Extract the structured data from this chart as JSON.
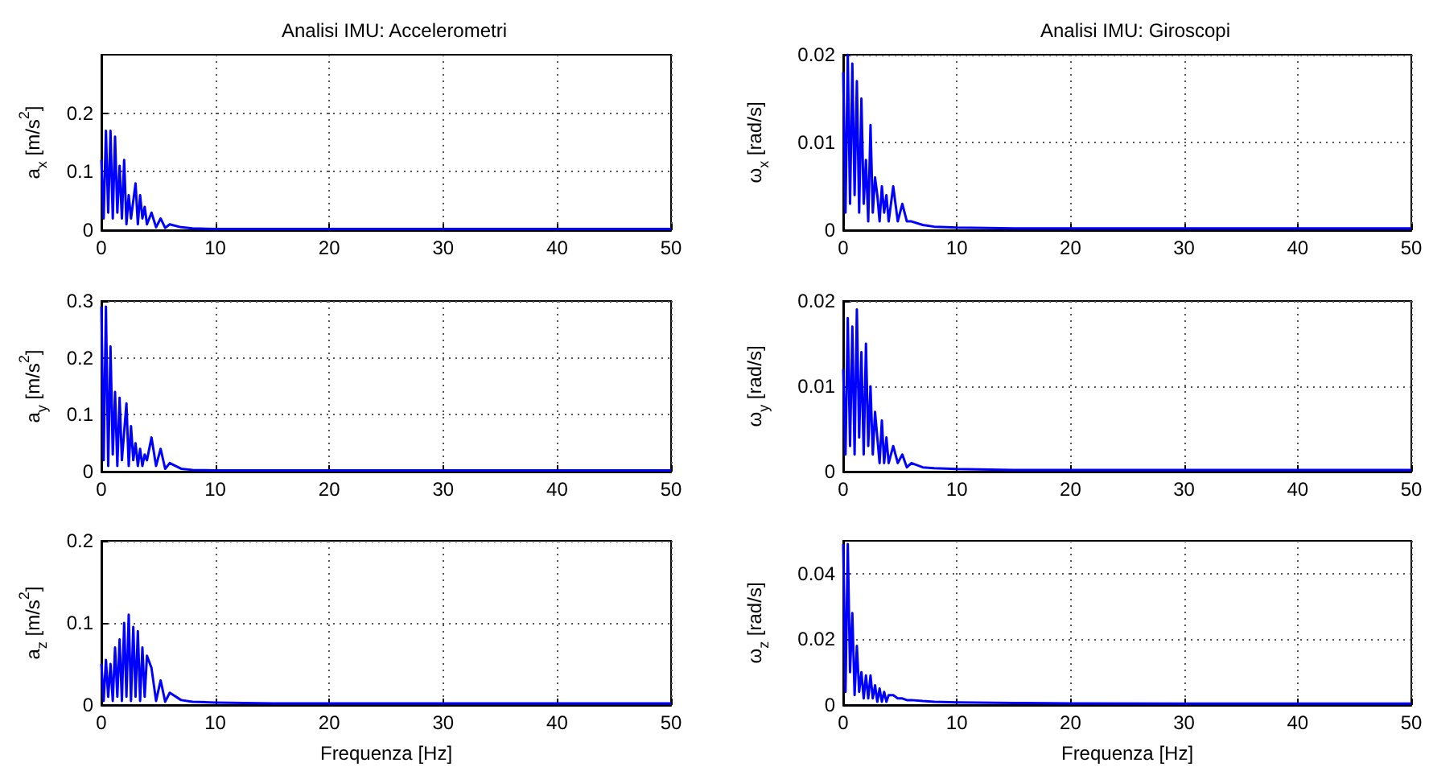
{
  "chart_data": [
    {
      "type": "line",
      "title": "Analisi IMU: Accelerometri",
      "ylabel": "a$_{x}$ [m/s$^{2}$]",
      "xlim": [
        0,
        50
      ],
      "xticks": [
        0,
        10,
        20,
        30,
        40,
        50
      ],
      "ylim": [
        0,
        0.3
      ],
      "yticks": [
        0,
        0.1,
        0.2
      ],
      "grid": true,
      "series": [
        {
          "color": "#0000ff",
          "x": [
            0,
            0.2,
            0.4,
            0.6,
            0.8,
            1.0,
            1.2,
            1.4,
            1.6,
            1.8,
            2.0,
            2.2,
            2.4,
            2.6,
            2.8,
            3.0,
            3.2,
            3.4,
            3.6,
            3.8,
            4.0,
            4.4,
            4.8,
            5.2,
            5.6,
            6,
            7,
            8,
            10,
            15,
            20,
            30,
            40,
            50
          ],
          "values": [
            0.12,
            0.02,
            0.17,
            0.03,
            0.17,
            0.02,
            0.16,
            0.03,
            0.11,
            0.02,
            0.12,
            0.01,
            0.06,
            0.02,
            0.05,
            0.08,
            0.01,
            0.06,
            0.02,
            0.04,
            0.01,
            0.03,
            0.005,
            0.02,
            0.004,
            0.01,
            0.005,
            0.003,
            0.002,
            0.002,
            0.002,
            0.002,
            0.002,
            0.002
          ]
        }
      ]
    },
    {
      "type": "line",
      "title": "Analisi IMU: Giroscopi",
      "ylabel": "ω$_{x}$ [rad/s]",
      "xlim": [
        0,
        50
      ],
      "xticks": [
        0,
        10,
        20,
        30,
        40,
        50
      ],
      "ylim": [
        0,
        0.02
      ],
      "yticks": [
        0,
        0.01,
        0.02
      ],
      "grid": true,
      "series": [
        {
          "color": "#0000ff",
          "x": [
            0,
            0.2,
            0.4,
            0.6,
            0.8,
            1.0,
            1.2,
            1.4,
            1.6,
            1.8,
            2.0,
            2.2,
            2.4,
            2.6,
            2.8,
            3.0,
            3.2,
            3.4,
            3.6,
            3.8,
            4.0,
            4.4,
            4.8,
            5.2,
            5.6,
            6,
            7,
            8,
            10,
            15,
            20,
            30,
            40,
            50
          ],
          "values": [
            0.018,
            0.002,
            0.02,
            0.003,
            0.019,
            0.004,
            0.017,
            0.002,
            0.015,
            0.003,
            0.008,
            0.001,
            0.012,
            0.002,
            0.006,
            0.004,
            0.001,
            0.005,
            0.002,
            0.004,
            0.001,
            0.005,
            0.001,
            0.003,
            0.001,
            0.001,
            0.0006,
            0.0004,
            0.0003,
            0.0002,
            0.0002,
            0.0002,
            0.0002,
            0.0002
          ]
        }
      ]
    },
    {
      "type": "line",
      "ylabel": "a$_{y}$ [m/s$^{2}$]",
      "xlim": [
        0,
        50
      ],
      "xticks": [
        0,
        10,
        20,
        30,
        40,
        50
      ],
      "ylim": [
        0,
        0.3
      ],
      "yticks": [
        0,
        0.1,
        0.2,
        0.3
      ],
      "grid": true,
      "series": [
        {
          "color": "#0000ff",
          "x": [
            0,
            0.2,
            0.4,
            0.6,
            0.8,
            1.0,
            1.2,
            1.4,
            1.6,
            1.8,
            2.0,
            2.2,
            2.4,
            2.6,
            2.8,
            3.0,
            3.2,
            3.4,
            3.6,
            3.8,
            4.0,
            4.4,
            4.8,
            5.2,
            5.6,
            6,
            7,
            8,
            10,
            15,
            20,
            30,
            40,
            50
          ],
          "values": [
            0.29,
            0.02,
            0.29,
            0.01,
            0.22,
            0.03,
            0.14,
            0.01,
            0.13,
            0.02,
            0.07,
            0.12,
            0.01,
            0.08,
            0.02,
            0.05,
            0.01,
            0.04,
            0.01,
            0.03,
            0.02,
            0.06,
            0.01,
            0.04,
            0.005,
            0.015,
            0.005,
            0.003,
            0.002,
            0.002,
            0.002,
            0.002,
            0.002,
            0.002
          ]
        }
      ]
    },
    {
      "type": "line",
      "ylabel": "ω$_{y}$ [rad/s]",
      "xlim": [
        0,
        50
      ],
      "xticks": [
        0,
        10,
        20,
        30,
        40,
        50
      ],
      "ylim": [
        0,
        0.02
      ],
      "yticks": [
        0,
        0.01,
        0.02
      ],
      "grid": true,
      "series": [
        {
          "color": "#0000ff",
          "x": [
            0,
            0.2,
            0.4,
            0.6,
            0.8,
            1.0,
            1.2,
            1.4,
            1.6,
            1.8,
            2.0,
            2.2,
            2.4,
            2.6,
            2.8,
            3.0,
            3.2,
            3.4,
            3.6,
            3.8,
            4.0,
            4.4,
            4.8,
            5.2,
            5.6,
            6,
            7,
            8,
            10,
            15,
            20,
            30,
            40,
            50
          ],
          "values": [
            0.012,
            0.002,
            0.018,
            0.003,
            0.017,
            0.002,
            0.019,
            0.004,
            0.014,
            0.002,
            0.015,
            0.003,
            0.01,
            0.002,
            0.007,
            0.004,
            0.001,
            0.006,
            0.001,
            0.004,
            0.001,
            0.003,
            0.001,
            0.002,
            0.0005,
            0.001,
            0.0005,
            0.0004,
            0.0003,
            0.0002,
            0.0002,
            0.0002,
            0.0002,
            0.0002
          ]
        }
      ]
    },
    {
      "type": "line",
      "ylabel": "a$_{z}$ [m/s$^{2}$]",
      "xlabel": "Frequenza [Hz]",
      "xlim": [
        0,
        50
      ],
      "xticks": [
        0,
        10,
        20,
        30,
        40,
        50
      ],
      "ylim": [
        0,
        0.2
      ],
      "yticks": [
        0,
        0.1,
        0.2
      ],
      "grid": true,
      "series": [
        {
          "color": "#0000ff",
          "x": [
            0,
            0.2,
            0.4,
            0.6,
            0.8,
            1.0,
            1.2,
            1.4,
            1.6,
            1.8,
            2.0,
            2.2,
            2.4,
            2.6,
            2.8,
            3.0,
            3.2,
            3.4,
            3.6,
            3.8,
            4.0,
            4.4,
            4.8,
            5.2,
            5.6,
            6,
            7,
            8,
            10,
            15,
            20,
            30,
            40,
            50
          ],
          "values": [
            0.05,
            0.005,
            0.055,
            0.01,
            0.05,
            0.005,
            0.07,
            0.01,
            0.08,
            0.005,
            0.1,
            0.01,
            0.11,
            0.005,
            0.095,
            0.01,
            0.09,
            0.005,
            0.07,
            0.01,
            0.06,
            0.045,
            0.005,
            0.03,
            0.004,
            0.015,
            0.006,
            0.004,
            0.003,
            0.002,
            0.002,
            0.002,
            0.002,
            0.002
          ]
        }
      ]
    },
    {
      "type": "line",
      "ylabel": "ω$_{z}$ [rad/s]",
      "xlabel": "Frequenza [Hz]",
      "xlim": [
        0,
        50
      ],
      "xticks": [
        0,
        10,
        20,
        30,
        40,
        50
      ],
      "ylim": [
        0,
        0.05
      ],
      "yticks": [
        0,
        0.02,
        0.04
      ],
      "grid": true,
      "series": [
        {
          "color": "#0000ff",
          "x": [
            0,
            0.2,
            0.4,
            0.6,
            0.8,
            1.0,
            1.2,
            1.4,
            1.6,
            1.8,
            2.0,
            2.2,
            2.4,
            2.6,
            2.8,
            3.0,
            3.2,
            3.4,
            3.6,
            3.8,
            4.0,
            4.4,
            4.8,
            5.2,
            5.6,
            6,
            7,
            8,
            10,
            15,
            20,
            30,
            40,
            50
          ],
          "values": [
            0.049,
            0.004,
            0.049,
            0.01,
            0.028,
            0.003,
            0.018,
            0.004,
            0.01,
            0.002,
            0.009,
            0.002,
            0.009,
            0.002,
            0.006,
            0.001,
            0.005,
            0.001,
            0.004,
            0.001,
            0.003,
            0.003,
            0.002,
            0.002,
            0.0015,
            0.0015,
            0.0012,
            0.001,
            0.0008,
            0.0006,
            0.0005,
            0.0004,
            0.0004,
            0.0004
          ]
        }
      ]
    }
  ]
}
